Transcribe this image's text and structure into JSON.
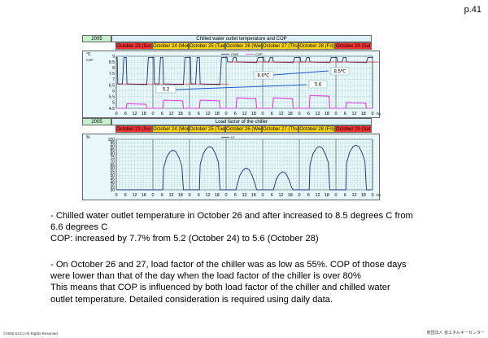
{
  "page_number": "p.41",
  "chart1": {
    "year": "2005",
    "title": "Chilled water outlet temperature and COP",
    "days": [
      "October 23 (Sun)",
      "October 24 (Mon)",
      "October 25 (Tue)",
      "October 26 (Wed)",
      "October 27 (Thu)",
      "October 28 (Fri)",
      "October 29 (Sat)"
    ],
    "y_unit": "°C",
    "y_ticks": [
      "9",
      "8.5",
      "8",
      "7.5",
      "7",
      "6.5",
      "6",
      "5.5",
      "5",
      "4.5"
    ],
    "y_left_extra": [
      "COP"
    ],
    "legend": [
      "CWS",
      "COP"
    ],
    "annotations": [
      "6.6℃",
      "8.5℃",
      "5.2",
      "5.6"
    ],
    "x_ticks": [
      "0",
      "6",
      "12",
      "18"
    ],
    "x_unit": "hour"
  },
  "chart2": {
    "year": "2005",
    "title": "Load factor of the chiller",
    "days": [
      "October 23 (Sun)",
      "October 24 (Mon)",
      "October 25 (Tue)",
      "October 26 (Wed)",
      "October 27 (Thu)",
      "October 28 (Fri)",
      "October 29 (Sat)"
    ],
    "y_unit": "%",
    "y_ticks": [
      "100",
      "95",
      "90",
      "85",
      "80",
      "75",
      "70",
      "65",
      "60",
      "55",
      "50",
      "45",
      "40",
      "35",
      "30"
    ],
    "legend": [
      "LF"
    ],
    "x_ticks": [
      "0",
      "6",
      "12",
      "18"
    ],
    "x_unit": "hour"
  },
  "bullets": [
    {
      "lines": [
        "- Chilled water outlet temperature in October 26 and after increased to 8.5 degrees C from",
        "  6.6 degrees C",
        "  COP: increased by 7.7% from 5.2 (October 24) to 5.6 (October 28)"
      ]
    },
    {
      "lines": [
        "- On October 26 and 27, load factor of the chiller was as low as 55%. COP of those days",
        "  were lower than that of the day when the load factor of the chiller is over 80%",
        "  This means that COP is influenced by both load factor of the chiller and chilled water",
        "  outlet temperature. Detailed consideration is required using daily data."
      ]
    }
  ],
  "footer_left": "©2008 ECCJ All Rights Reserved",
  "footer_right": "財団法人 省エネルギーセンター",
  "colors": {
    "cws_line": "#1f2a7a",
    "cop_line": "#e040e0",
    "lf_line": "#1f2a7a",
    "plot_bg": "#e7f7fa",
    "weekend_day": "#ff3333",
    "weekday_day": "#ffd800"
  }
}
